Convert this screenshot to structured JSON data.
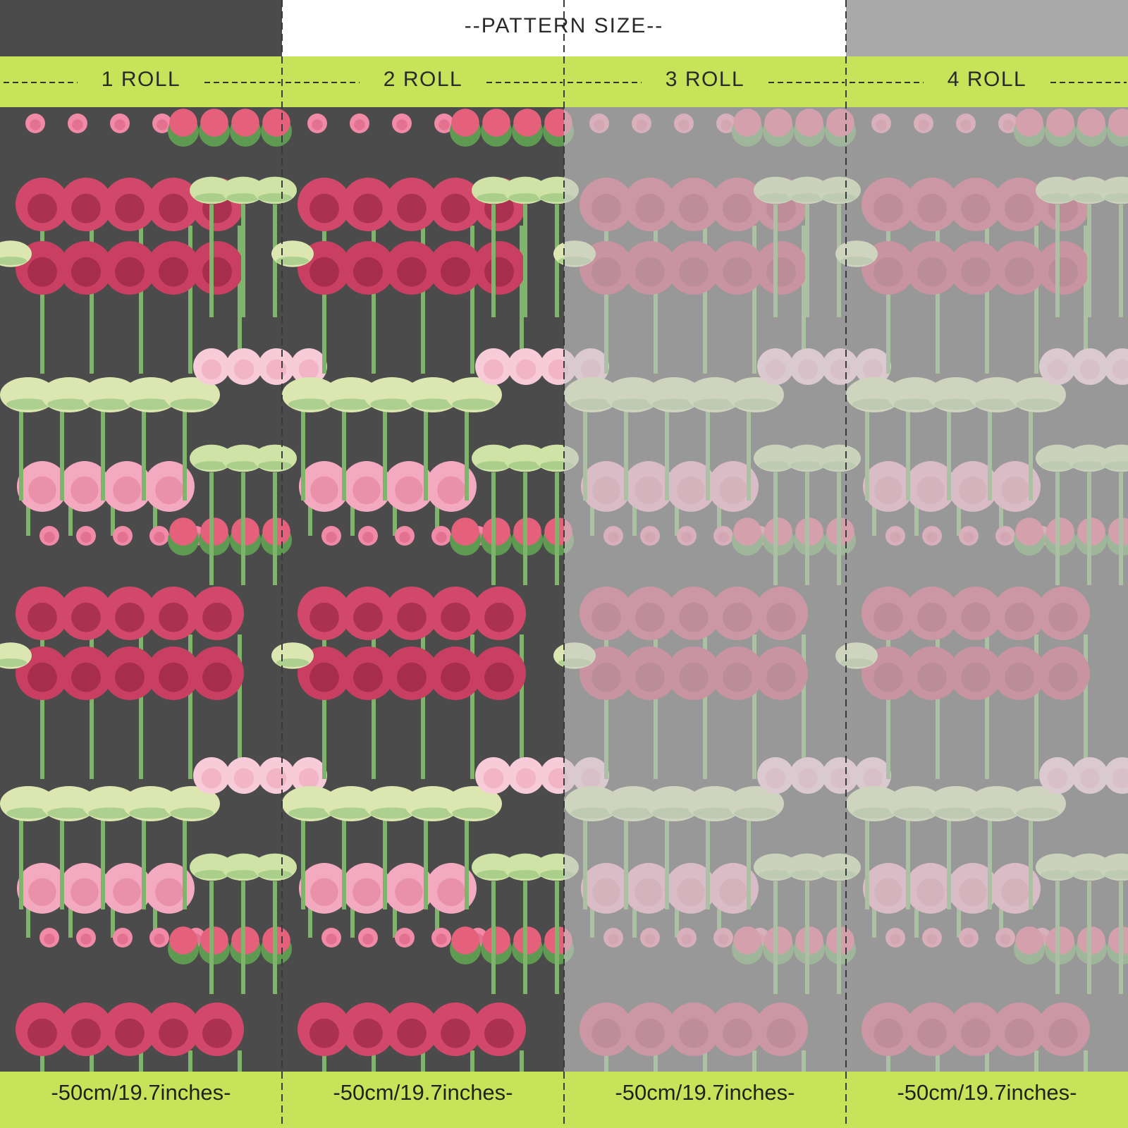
{
  "title": "--PATTERN SIZE--",
  "rolls": [
    {
      "label": "1 ROLL",
      "size": "-50cm/19.7inches-",
      "dimmed": false
    },
    {
      "label": "2 ROLL",
      "size": "-50cm/19.7inches-",
      "dimmed": false
    },
    {
      "label": "3 ROLL",
      "size": "-50cm/19.7inches-",
      "dimmed": true
    },
    {
      "label": "4 ROLL",
      "size": "-50cm/19.7inches-",
      "dimmed": true
    }
  ],
  "colors": {
    "background": "#4b4b4b",
    "band": "#c6e35a",
    "title_area": "#ffffff",
    "dim_overlay": "#c8c8c8",
    "stem": "#7fb56a",
    "deep_pink": "#d2486a",
    "light_pink": "#f3a9bf",
    "pale_pink": "#f7cbd8",
    "pale_green": "#dbe6b0",
    "mid_green": "#8fc17a"
  }
}
